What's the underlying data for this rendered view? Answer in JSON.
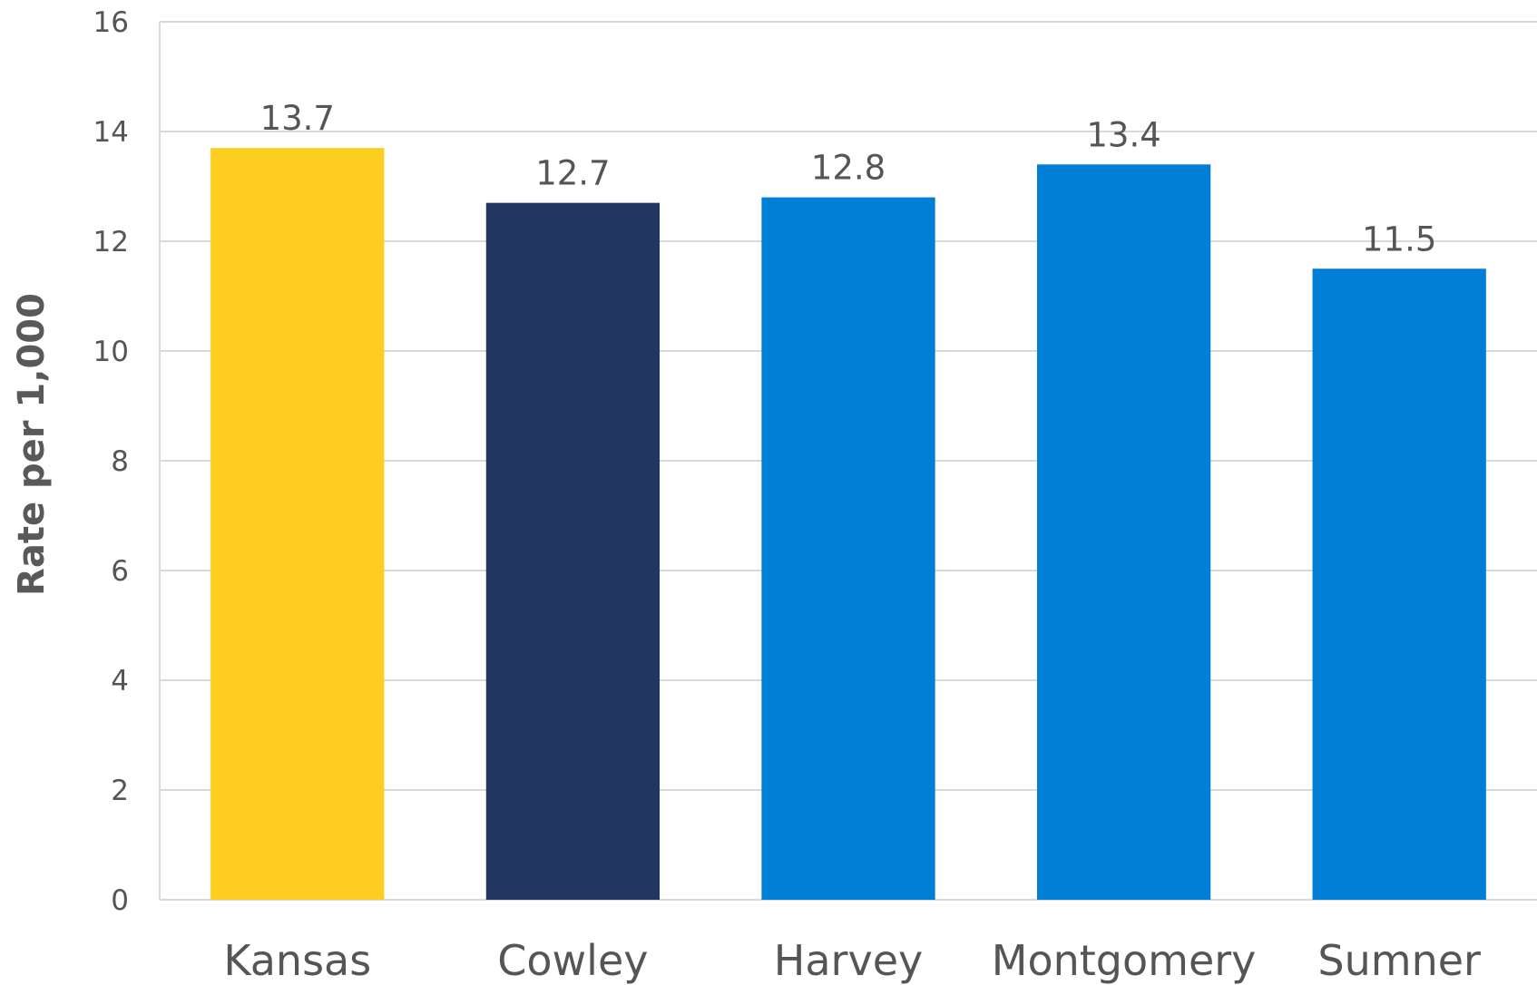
{
  "chart_data": {
    "type": "bar",
    "title": "",
    "xlabel": "",
    "ylabel": "Rate per 1,000",
    "ylim": [
      0,
      16
    ],
    "yticks": [
      0,
      2,
      4,
      6,
      8,
      10,
      12,
      14,
      16
    ],
    "grid": true,
    "legend": "none",
    "categories": [
      "Kansas",
      "Cowley",
      "Harvey",
      "Montgomery",
      "Sumner"
    ],
    "values": [
      13.7,
      12.7,
      12.8,
      13.4,
      11.5
    ],
    "data_labels": [
      "13.7",
      "12.7",
      "12.8",
      "13.4",
      "11.5"
    ],
    "colors": [
      "#FDCD1F",
      "#213761",
      "#007DD4",
      "#007DD4",
      "#007DD4"
    ]
  },
  "colors": {
    "grid": "#D9D9D9",
    "text": "#555555"
  }
}
